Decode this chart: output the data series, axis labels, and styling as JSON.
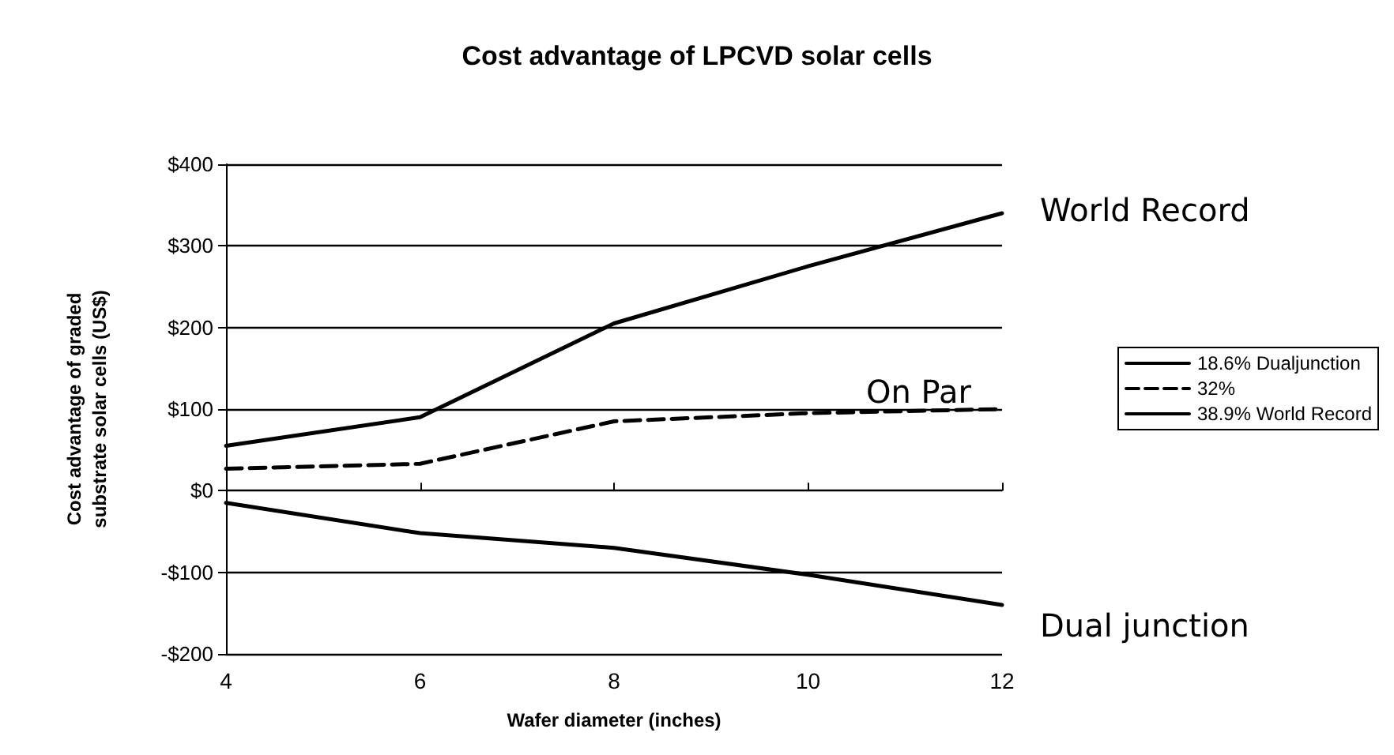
{
  "chart_data": {
    "type": "line",
    "title": "Cost advantage of LPCVD solar cells",
    "xlabel": "Wafer diameter (inches)",
    "ylabel": "Cost advantage of graded\nsubstrate solar cells (US$)",
    "x": [
      4,
      6,
      8,
      10,
      12
    ],
    "series": [
      {
        "name": "18.6% Dualjunction",
        "color": "#000000",
        "line_style": "solid",
        "values": [
          -15,
          -52,
          -70,
          -103,
          -140
        ]
      },
      {
        "name": "32%",
        "color": "#000000",
        "line_style": "dashed",
        "values": [
          27,
          33,
          85,
          95,
          100
        ]
      },
      {
        "name": "38.9% World Record",
        "color": "#000000",
        "line_style": "solid",
        "values": [
          55,
          90,
          205,
          275,
          340
        ]
      }
    ],
    "xlim": [
      4,
      12
    ],
    "xticks": [
      4,
      6,
      8,
      10,
      12
    ],
    "ylim": [
      -200,
      400
    ],
    "yticks": [
      {
        "value": -200,
        "label": "-$200"
      },
      {
        "value": -100,
        "label": "-$100"
      },
      {
        "value": 0,
        "label": "$0"
      },
      {
        "value": 100,
        "label": "$100"
      },
      {
        "value": 200,
        "label": "$200"
      },
      {
        "value": 300,
        "label": "$300"
      },
      {
        "value": 400,
        "label": "$400"
      }
    ],
    "grid": "y",
    "legend": "right",
    "marker": "none",
    "annotations": [
      "World Record",
      "On Par",
      "Dual junction"
    ]
  }
}
